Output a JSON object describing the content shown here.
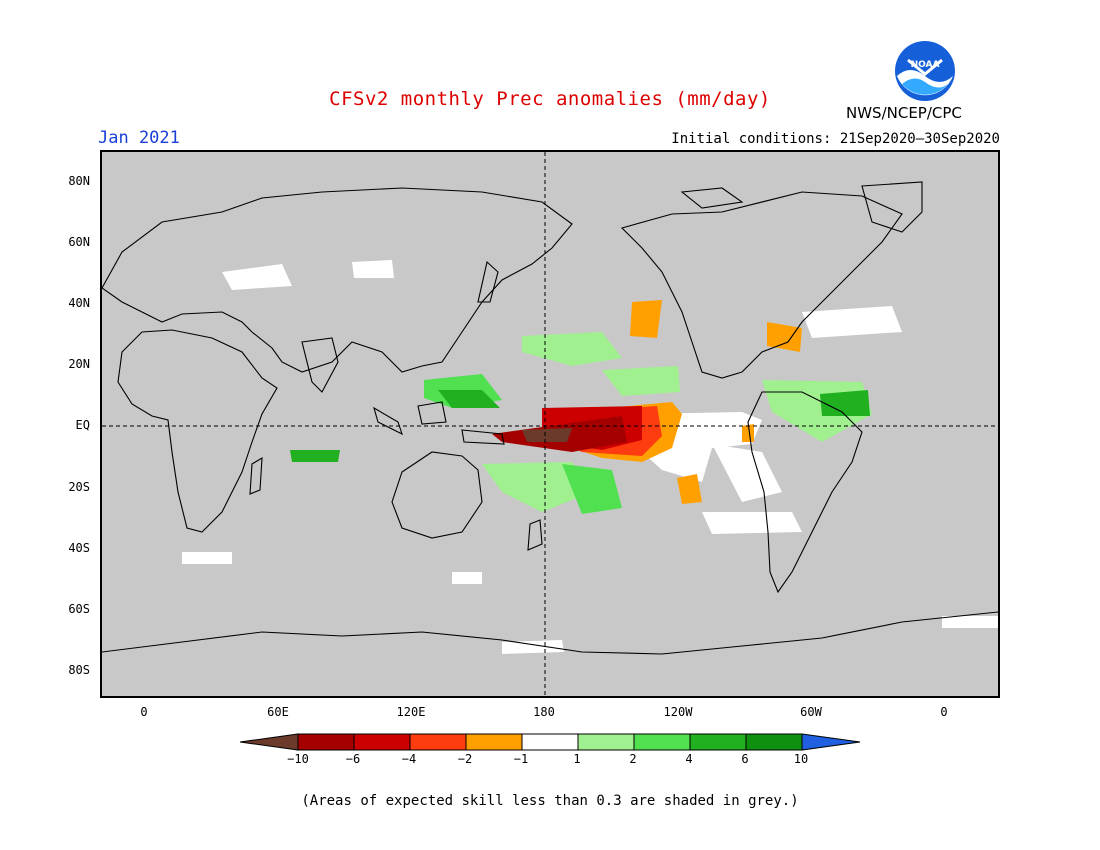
{
  "title": "CFSv2 monthly Prec anomalies (mm/day)",
  "month": "Jan 2021",
  "initial_conditions": "Initial conditions: 21Sep2020–30Sep2020",
  "agency": "NWS/NCEP/CPC",
  "logo_text": "NOAA",
  "note": "(Areas of expected skill less than 0.3 are shaded in grey.)",
  "colors": {
    "title": "#dd0000",
    "month": "#1a3fd8",
    "skill_grey": "#c8c8c8"
  },
  "lat_labels": [
    "80N",
    "60N",
    "40N",
    "20N",
    "EQ",
    "20S",
    "40S",
    "60S",
    "80S"
  ],
  "lon_labels": [
    "0",
    "60E",
    "120E",
    "180",
    "120W",
    "60W",
    "0"
  ],
  "legend": {
    "labels": [
      "−10",
      "−6",
      "−4",
      "−2",
      "−1",
      "1",
      "2",
      "4",
      "6",
      "10"
    ],
    "colors": [
      "#6b3a2a",
      "#a50000",
      "#cc0000",
      "#ff3b10",
      "#ffa000",
      "#ffffff",
      "#a0f090",
      "#50e050",
      "#20b020",
      "#109010",
      "#2060e0"
    ]
  }
}
